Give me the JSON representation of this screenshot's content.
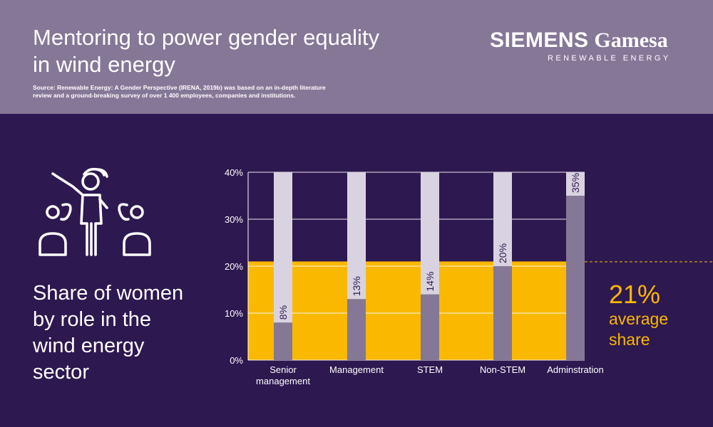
{
  "header": {
    "title_line1": "Mentoring to power gender equality",
    "title_line2": "in wind energy",
    "source_line1": "Source: Renewable Energy: A Gender Perspective (IRENA, 2019b) was based on an in-depth literature",
    "source_line2": "review and a ground-breaking survey of over 1 400 employees, companies and institutions."
  },
  "logo": {
    "word1": "SIEMENS",
    "word2": "Gamesa",
    "tagline": "RENEWABLE ENERGY"
  },
  "icon": "women-mentoring-group-icon",
  "subtitle": {
    "line1": "Share of women",
    "line2": "by role in the",
    "line3": "wind energy",
    "line4": "sector"
  },
  "average": {
    "value_label": "21%",
    "caption_line1": "average",
    "caption_line2": "share"
  },
  "colors": {
    "background": "#2e1850",
    "header": "#857796",
    "average_band": "#fbb800",
    "bar_fill": "#857796",
    "bar_track": "#d9d3e1",
    "text": "#ffffff"
  },
  "chart_data": {
    "type": "bar",
    "categories": [
      [
        "Senior",
        "management"
      ],
      [
        "Management"
      ],
      [
        "STEM"
      ],
      [
        "Non-STEM"
      ],
      [
        "Adminstration"
      ]
    ],
    "values": [
      8,
      13,
      14,
      20,
      35
    ],
    "value_labels": [
      "8%",
      "13%",
      "14%",
      "20%",
      "35%"
    ],
    "ylim": [
      0,
      40
    ],
    "yticks": [
      0,
      10,
      20,
      30,
      40
    ],
    "ytick_labels": [
      "0%",
      "10%",
      "20%",
      "30%",
      "40%"
    ],
    "average": 21,
    "grid": true
  }
}
